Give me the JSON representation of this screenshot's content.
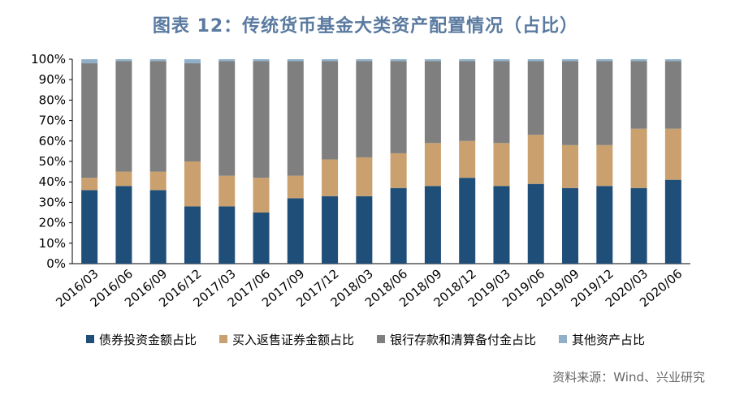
{
  "chart_data": {
    "type": "bar",
    "stacked": true,
    "title": "图表 12：传统货币基金大类资产配置情况（占比）",
    "categories": [
      "2016/03",
      "2016/06",
      "2016/09",
      "2016/12",
      "2017/03",
      "2017/06",
      "2017/09",
      "2017/12",
      "2018/03",
      "2018/06",
      "2018/09",
      "2018/12",
      "2019/03",
      "2019/06",
      "2019/09",
      "2019/12",
      "2020/03",
      "2020/06"
    ],
    "series": [
      {
        "name": "债券投资金额占比",
        "color": "#1f4e79",
        "values": [
          36,
          38,
          36,
          28,
          28,
          25,
          32,
          33,
          33,
          37,
          38,
          42,
          38,
          39,
          37,
          38,
          37,
          41
        ]
      },
      {
        "name": "买入返售证券金额占比",
        "color": "#c9a06e",
        "values": [
          6,
          7,
          9,
          22,
          15,
          17,
          11,
          18,
          19,
          17,
          21,
          18,
          21,
          24,
          21,
          20,
          29,
          25
        ]
      },
      {
        "name": "银行存款和清算备付金占比",
        "color": "#7f7f7f",
        "values": [
          56,
          54,
          54,
          48,
          56,
          57,
          56,
          48,
          47,
          45,
          40,
          39,
          40,
          36,
          41,
          41,
          33,
          33
        ]
      },
      {
        "name": "其他资产占比",
        "color": "#8fb0c8",
        "values": [
          2,
          1,
          1,
          2,
          1,
          1,
          1,
          1,
          1,
          1,
          1,
          1,
          1,
          1,
          1,
          1,
          1,
          1
        ]
      }
    ],
    "y_ticks": [
      "0%",
      "10%",
      "20%",
      "30%",
      "40%",
      "50%",
      "60%",
      "70%",
      "80%",
      "90%",
      "100%"
    ],
    "ylim": [
      0,
      100
    ],
    "grid": false,
    "legend_position": "bottom"
  },
  "source": "资料来源：Wind、兴业研究"
}
